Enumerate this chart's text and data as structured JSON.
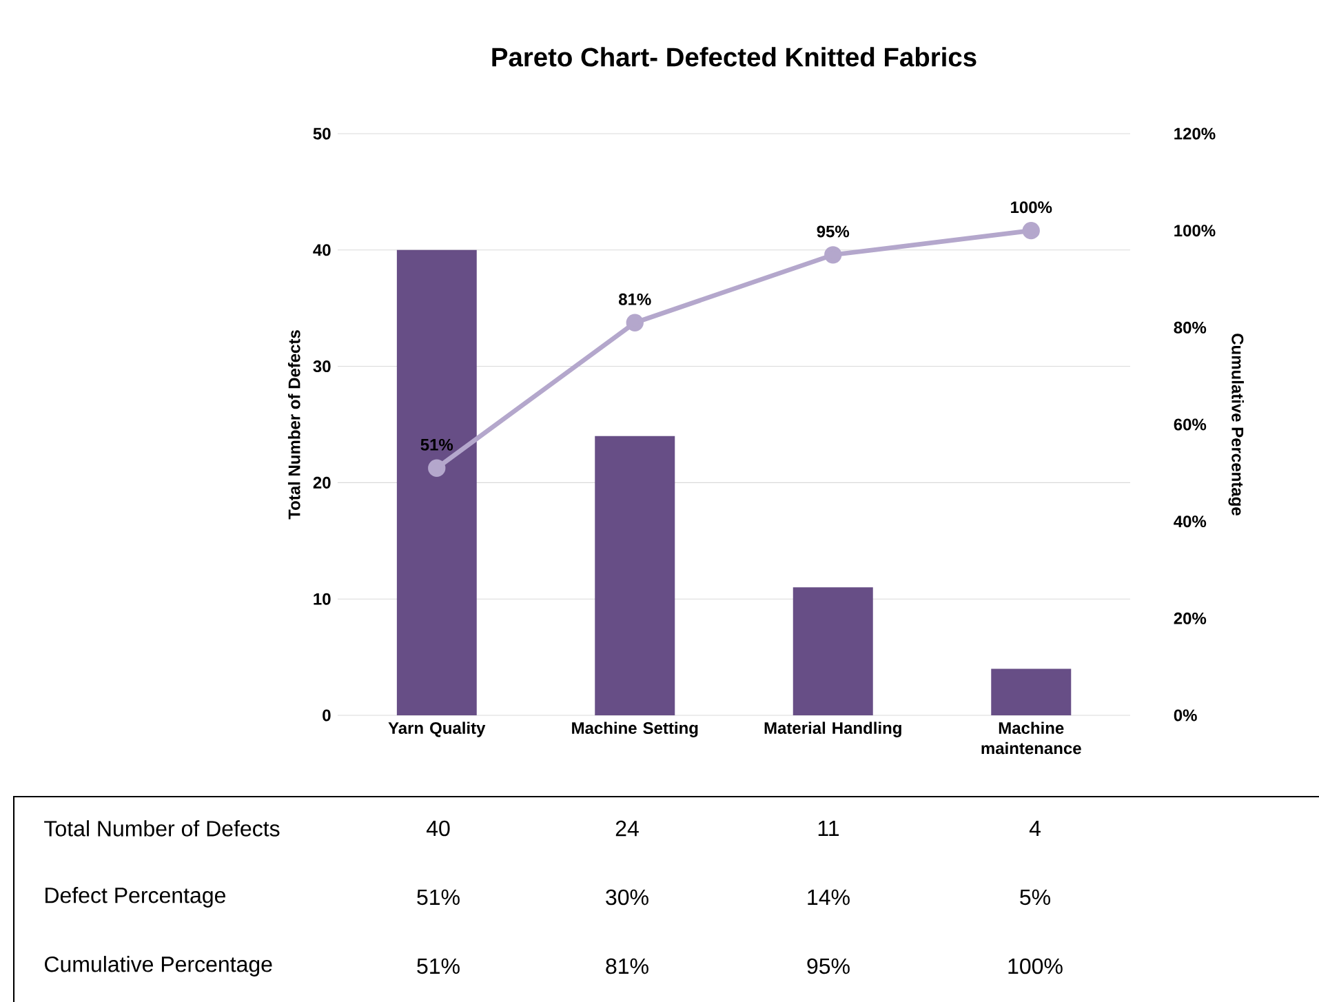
{
  "chart_data": {
    "type": "bar",
    "title": "Pareto Chart- Defected Knitted Fabrics",
    "categories": [
      "Yarn Quality",
      "Machine Setting",
      "Material Handling",
      "Machine maintenance"
    ],
    "ylabel": "Total Number of Defects",
    "y2label": "Cumulative Percentage",
    "ylim": [
      0,
      50
    ],
    "yticks": [
      0,
      10,
      20,
      30,
      40,
      50
    ],
    "y2lim": [
      0,
      120
    ],
    "y2ticks": [
      {
        "value": 0,
        "label": "0%"
      },
      {
        "value": 20,
        "label": "20%"
      },
      {
        "value": 40,
        "label": "40%"
      },
      {
        "value": 60,
        "label": "60%"
      },
      {
        "value": 80,
        "label": "80%"
      },
      {
        "value": 100,
        "label": "100%"
      },
      {
        "value": 120,
        "label": "120%"
      }
    ],
    "grid": "y",
    "series": [
      {
        "color": "#674e86",
        "values": [
          40,
          24,
          11,
          4
        ],
        "value_labels": [
          "40",
          "24",
          "11",
          "4"
        ]
      },
      {
        "type": "line",
        "axis": "y2",
        "marker": "circle",
        "color": "#b4a7cc",
        "values": [
          51,
          81,
          95,
          100
        ],
        "value_labels": [
          "51%",
          "81%",
          "95%",
          "100%"
        ]
      }
    ],
    "annotations": [
      "Total Number of Defects",
      "Defect Percentage",
      "Cumulative Percentage",
      "51%",
      "30%",
      "14%",
      "5%"
    ]
  }
}
